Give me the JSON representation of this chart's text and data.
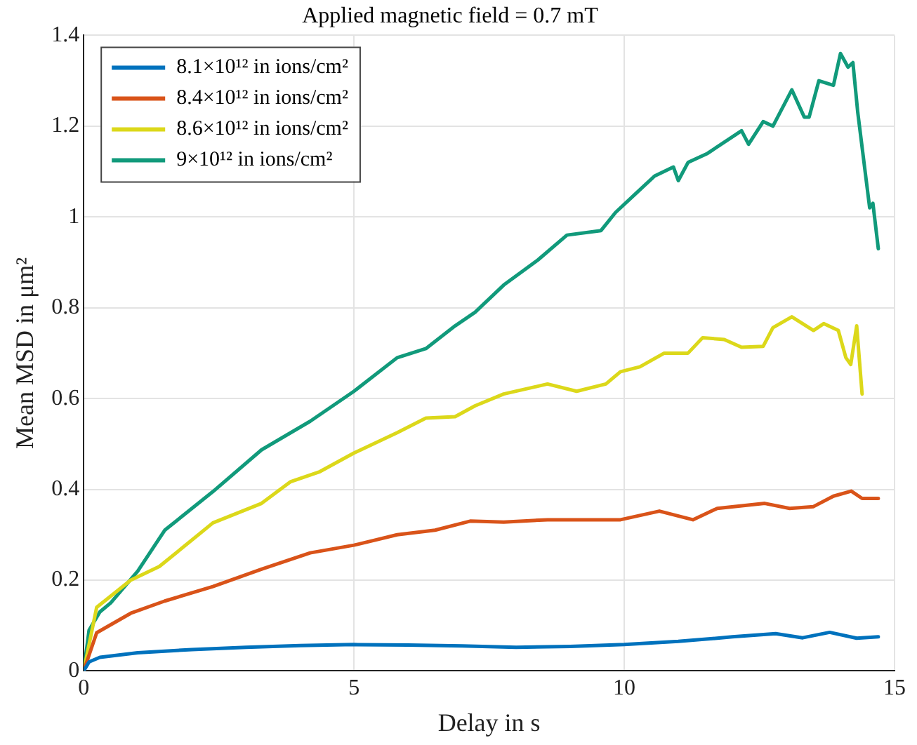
{
  "chart_data": {
    "type": "line",
    "title": "Applied magnetic field = 0.7 mT",
    "xlabel": "Delay in s",
    "ylabel": "Mean MSD in μm²",
    "xlim": [
      0,
      15
    ],
    "xticks": [
      0,
      5,
      10,
      15
    ],
    "ylim": [
      0,
      1.4
    ],
    "yticks": [
      0,
      0.2,
      0.4,
      0.6,
      0.8,
      1,
      1.2,
      1.4
    ],
    "grid": true,
    "legend": "top left",
    "marker": "none",
    "line_style": "solid",
    "series": [
      {
        "name": "8.1×10¹² in ions/cm²",
        "color": "#0072bd",
        "x": [
          0,
          0.1,
          0.3,
          1,
          2,
          3,
          4,
          5,
          6,
          7,
          8,
          9,
          10,
          11,
          12,
          12.8,
          13.3,
          13.8,
          14.3,
          14.7
        ],
        "values": [
          0,
          0.02,
          0.03,
          0.04,
          0.047,
          0.052,
          0.056,
          0.058,
          0.057,
          0.055,
          0.052,
          0.054,
          0.058,
          0.065,
          0.075,
          0.082,
          0.073,
          0.085,
          0.072,
          0.075
        ]
      },
      {
        "name": "8.4×10¹² in ions/cm²",
        "color": "#d95319",
        "x": [
          0,
          0.24,
          0.87,
          1.5,
          2.39,
          3.29,
          4.19,
          5,
          5.8,
          6.5,
          7.15,
          7.77,
          8.58,
          9.93,
          10.65,
          11.27,
          11.72,
          12.6,
          13.06,
          13.5,
          13.87,
          14.2,
          14.4,
          14.7
        ],
        "values": [
          0,
          0.084,
          0.127,
          0.154,
          0.186,
          0.224,
          0.26,
          0.277,
          0.3,
          0.31,
          0.33,
          0.328,
          0.333,
          0.333,
          0.352,
          0.333,
          0.358,
          0.369,
          0.358,
          0.362,
          0.385,
          0.396,
          0.38,
          0.38
        ]
      },
      {
        "name": "8.6×10¹² in ions/cm²",
        "color": "#dcd81a",
        "x": [
          0,
          0.24,
          0.87,
          1.4,
          2.39,
          3.29,
          3.83,
          4.37,
          5,
          5.8,
          6.33,
          6.87,
          7.24,
          7.77,
          8.58,
          9.12,
          9.66,
          9.93,
          10.29,
          10.74,
          11.18,
          11.45,
          11.85,
          12.17,
          12.57,
          12.75,
          13.1,
          13.5,
          13.69,
          13.96,
          14.1,
          14.19,
          14.3,
          14.4
        ],
        "values": [
          0,
          0.14,
          0.2,
          0.23,
          0.326,
          0.369,
          0.417,
          0.439,
          0.48,
          0.525,
          0.557,
          0.56,
          0.584,
          0.61,
          0.632,
          0.616,
          0.632,
          0.659,
          0.67,
          0.7,
          0.7,
          0.734,
          0.73,
          0.713,
          0.715,
          0.756,
          0.78,
          0.75,
          0.765,
          0.75,
          0.69,
          0.675,
          0.76,
          0.61
        ]
      },
      {
        "name": "9×10¹² in ions/cm²",
        "color": "#119a7b",
        "x": [
          0,
          0.1,
          0.3,
          0.5,
          1,
          1.5,
          2.39,
          3.29,
          4.19,
          5,
          5.8,
          6.33,
          6.87,
          7.24,
          7.77,
          8.4,
          8.94,
          9.57,
          9.84,
          10.2,
          10.56,
          10.91,
          11,
          11.18,
          11.54,
          12.17,
          12.3,
          12.57,
          12.75,
          13.1,
          13.33,
          13.42,
          13.6,
          13.87,
          14,
          14.14,
          14.23,
          14.32,
          14.54,
          14.6,
          14.7
        ],
        "values": [
          0,
          0.09,
          0.13,
          0.15,
          0.22,
          0.31,
          0.395,
          0.487,
          0.55,
          0.616,
          0.69,
          0.71,
          0.76,
          0.79,
          0.85,
          0.905,
          0.96,
          0.97,
          1.01,
          1.05,
          1.09,
          1.11,
          1.08,
          1.12,
          1.14,
          1.19,
          1.16,
          1.21,
          1.2,
          1.28,
          1.22,
          1.22,
          1.3,
          1.29,
          1.36,
          1.33,
          1.34,
          1.23,
          1.02,
          1.03,
          0.93
        ]
      }
    ]
  }
}
